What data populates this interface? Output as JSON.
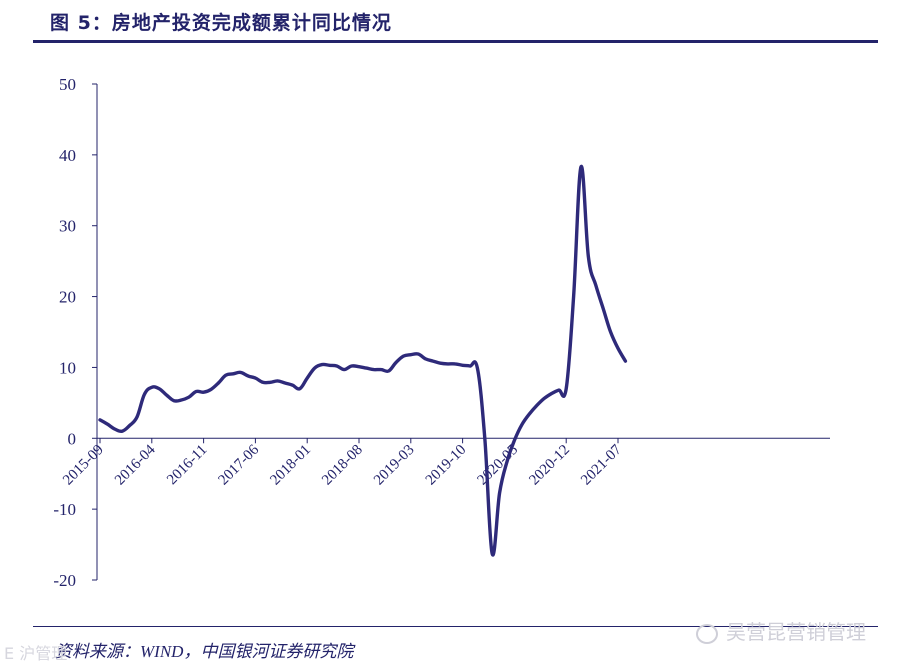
{
  "figure": {
    "title": "图 5：房地产投资完成额累计同比情况",
    "source": "资料来源：WIND，中国银河证券研究院",
    "watermark_right": "吴营昆营销管理",
    "watermark_left": "E 沪管理"
  },
  "colors": {
    "line": "#2e2a7a",
    "axis": "#23236a",
    "text": "#23236a"
  },
  "chart_data": {
    "type": "line",
    "title": "",
    "xlabel": "",
    "ylabel": "",
    "ylim": [
      -20,
      50
    ],
    "yticks": [
      -20,
      -10,
      0,
      10,
      20,
      30,
      40,
      50
    ],
    "xticks": [
      "2015-09",
      "2016-04",
      "2016-11",
      "2017-06",
      "2018-01",
      "2018-08",
      "2019-03",
      "2019-10",
      "2020-05",
      "2020-12",
      "2021-07"
    ],
    "grid": false,
    "legend": "none",
    "series": [
      {
        "x": [
          "2015-09",
          "2015-10",
          "2015-11",
          "2015-12",
          "2016-01",
          "2016-02",
          "2016-03",
          "2016-04",
          "2016-05",
          "2016-06",
          "2016-07",
          "2016-08",
          "2016-09",
          "2016-10",
          "2016-11",
          "2016-12",
          "2017-01",
          "2017-02",
          "2017-03",
          "2017-04",
          "2017-05",
          "2017-06",
          "2017-07",
          "2017-08",
          "2017-09",
          "2017-10",
          "2017-11",
          "2017-12",
          "2018-01",
          "2018-02",
          "2018-03",
          "2018-04",
          "2018-05",
          "2018-06",
          "2018-07",
          "2018-08",
          "2018-09",
          "2018-10",
          "2018-11",
          "2018-12",
          "2019-01",
          "2019-02",
          "2019-03",
          "2019-04",
          "2019-05",
          "2019-06",
          "2019-07",
          "2019-08",
          "2019-09",
          "2019-10",
          "2019-11",
          "2019-12",
          "2020-01",
          "2020-02",
          "2020-03",
          "2020-04",
          "2020-05",
          "2020-06",
          "2020-07",
          "2020-08",
          "2020-09",
          "2020-10",
          "2020-11",
          "2020-12",
          "2021-01",
          "2021-02",
          "2021-03",
          "2021-04",
          "2021-05",
          "2021-06",
          "2021-07",
          "2021-08"
        ],
        "values": [
          2.6,
          2.0,
          1.3,
          1.0,
          1.8,
          3.0,
          6.2,
          7.2,
          7.0,
          6.1,
          5.3,
          5.4,
          5.8,
          6.6,
          6.5,
          6.9,
          7.8,
          8.9,
          9.1,
          9.3,
          8.8,
          8.5,
          7.9,
          7.9,
          8.1,
          7.8,
          7.5,
          7.0,
          8.5,
          9.9,
          10.4,
          10.3,
          10.2,
          9.7,
          10.2,
          10.1,
          9.9,
          9.7,
          9.7,
          9.5,
          10.7,
          11.6,
          11.8,
          11.9,
          11.2,
          10.9,
          10.6,
          10.5,
          10.5,
          10.3,
          10.2,
          9.9,
          0.0,
          -16.3,
          -7.7,
          -3.3,
          -0.3,
          1.9,
          3.4,
          4.6,
          5.6,
          6.3,
          6.8,
          7.0,
          20.0,
          38.3,
          25.6,
          21.6,
          18.3,
          15.0,
          12.7,
          10.9
        ]
      }
    ]
  }
}
